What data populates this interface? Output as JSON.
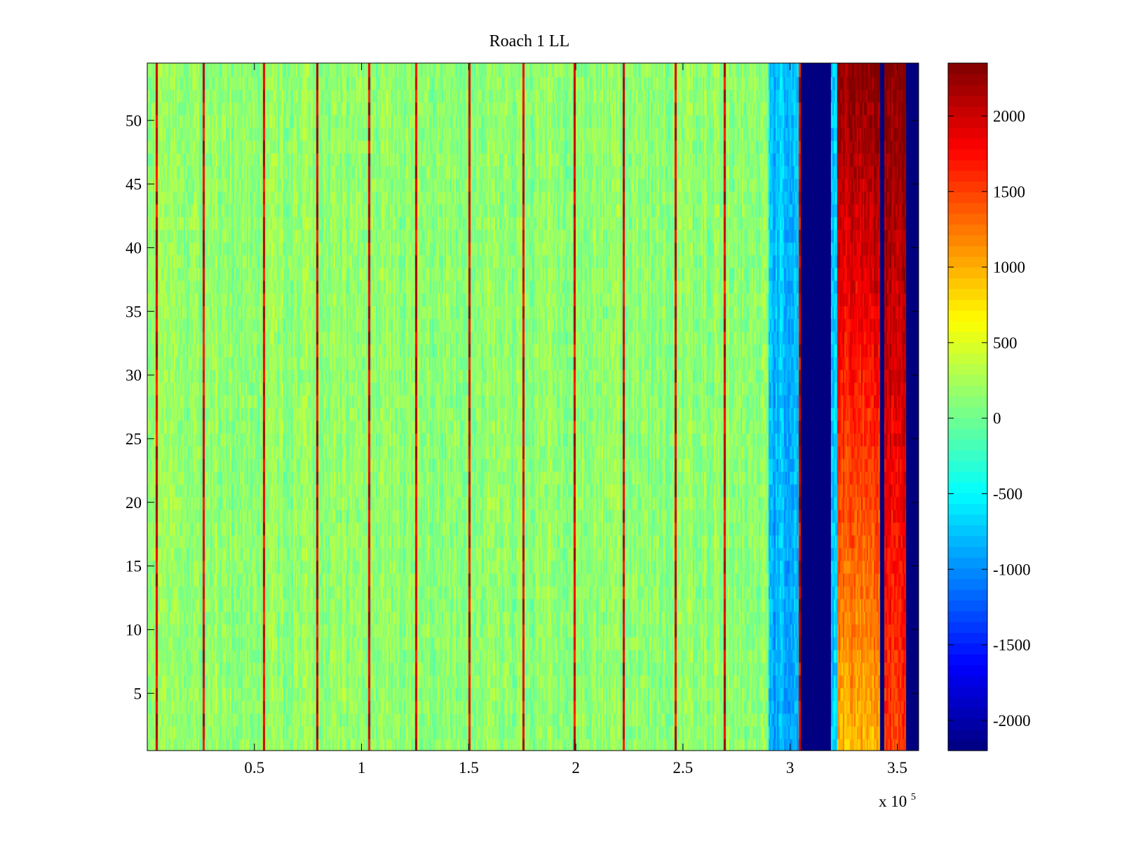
{
  "chart_data": {
    "type": "heatmap",
    "title": "Roach 1 LL",
    "xlabel": "",
    "ylabel": "",
    "x_exponent_label": "x 10",
    "x_exponent_power": "5",
    "xlim": [
      0,
      360000
    ],
    "ylim": [
      0.5,
      54.5
    ],
    "x_ticks": [
      {
        "value": 50000,
        "label": "0.5"
      },
      {
        "value": 100000,
        "label": "1"
      },
      {
        "value": 150000,
        "label": "1.5"
      },
      {
        "value": 200000,
        "label": "2"
      },
      {
        "value": 250000,
        "label": "2.5"
      },
      {
        "value": 300000,
        "label": "3"
      },
      {
        "value": 350000,
        "label": "3.5"
      }
    ],
    "y_ticks": [
      {
        "value": 5,
        "label": "5"
      },
      {
        "value": 10,
        "label": "10"
      },
      {
        "value": 15,
        "label": "15"
      },
      {
        "value": 20,
        "label": "20"
      },
      {
        "value": 25,
        "label": "25"
      },
      {
        "value": 30,
        "label": "30"
      },
      {
        "value": 35,
        "label": "35"
      },
      {
        "value": 40,
        "label": "40"
      },
      {
        "value": 45,
        "label": "45"
      },
      {
        "value": 50,
        "label": "50"
      }
    ],
    "colorbar": {
      "colormap": "jet",
      "clim": [
        -2200,
        2350
      ],
      "ticks": [
        {
          "value": 2000,
          "label": "2000"
        },
        {
          "value": 1500,
          "label": "1500"
        },
        {
          "value": 1000,
          "label": "1000"
        },
        {
          "value": 500,
          "label": "500"
        },
        {
          "value": 0,
          "label": "0"
        },
        {
          "value": -500,
          "label": "-500"
        },
        {
          "value": -1000,
          "label": "-1000"
        },
        {
          "value": -1500,
          "label": "-1500"
        },
        {
          "value": -2000,
          "label": "-2000"
        }
      ]
    },
    "rows": 54,
    "regions": [
      {
        "x_start": 0,
        "x_end": 290000,
        "value_bottom": 150,
        "value_top": 150,
        "noise": 350
      },
      {
        "x_start": 290000,
        "x_end": 304000,
        "value_bottom": -850,
        "value_top": -750,
        "noise": 350
      },
      {
        "x_start": 304000,
        "x_end": 319000,
        "value_bottom": -2200,
        "value_top": -2200,
        "noise": 0
      },
      {
        "x_start": 319000,
        "x_end": 322000,
        "value_bottom": -700,
        "value_top": -700,
        "noise": 400
      },
      {
        "x_start": 322000,
        "x_end": 342000,
        "value_bottom": 1000,
        "value_top": 2350,
        "noise": 350
      },
      {
        "x_start": 342000,
        "x_end": 344000,
        "value_bottom": -2200,
        "value_top": -2200,
        "noise": 0
      },
      {
        "x_start": 344000,
        "x_end": 354000,
        "value_bottom": 1500,
        "value_top": 2350,
        "noise": 350
      },
      {
        "x_start": 354000,
        "x_end": 360000,
        "value_bottom": -2200,
        "value_top": -2200,
        "noise": 0
      }
    ],
    "stripes": [
      {
        "x": 4000,
        "value": 2300
      },
      {
        "x": 26000,
        "value": 2300
      },
      {
        "x": 54000,
        "value": 2300
      },
      {
        "x": 79000,
        "value": 2300
      },
      {
        "x": 103000,
        "value": 2300
      },
      {
        "x": 125000,
        "value": 2300
      },
      {
        "x": 150000,
        "value": 2300
      },
      {
        "x": 175000,
        "value": 2300
      },
      {
        "x": 199000,
        "value": 2300
      },
      {
        "x": 222000,
        "value": 2300
      },
      {
        "x": 246000,
        "value": 2300
      },
      {
        "x": 269000,
        "value": 2300
      },
      {
        "x": 304000,
        "value": 2300
      }
    ]
  }
}
